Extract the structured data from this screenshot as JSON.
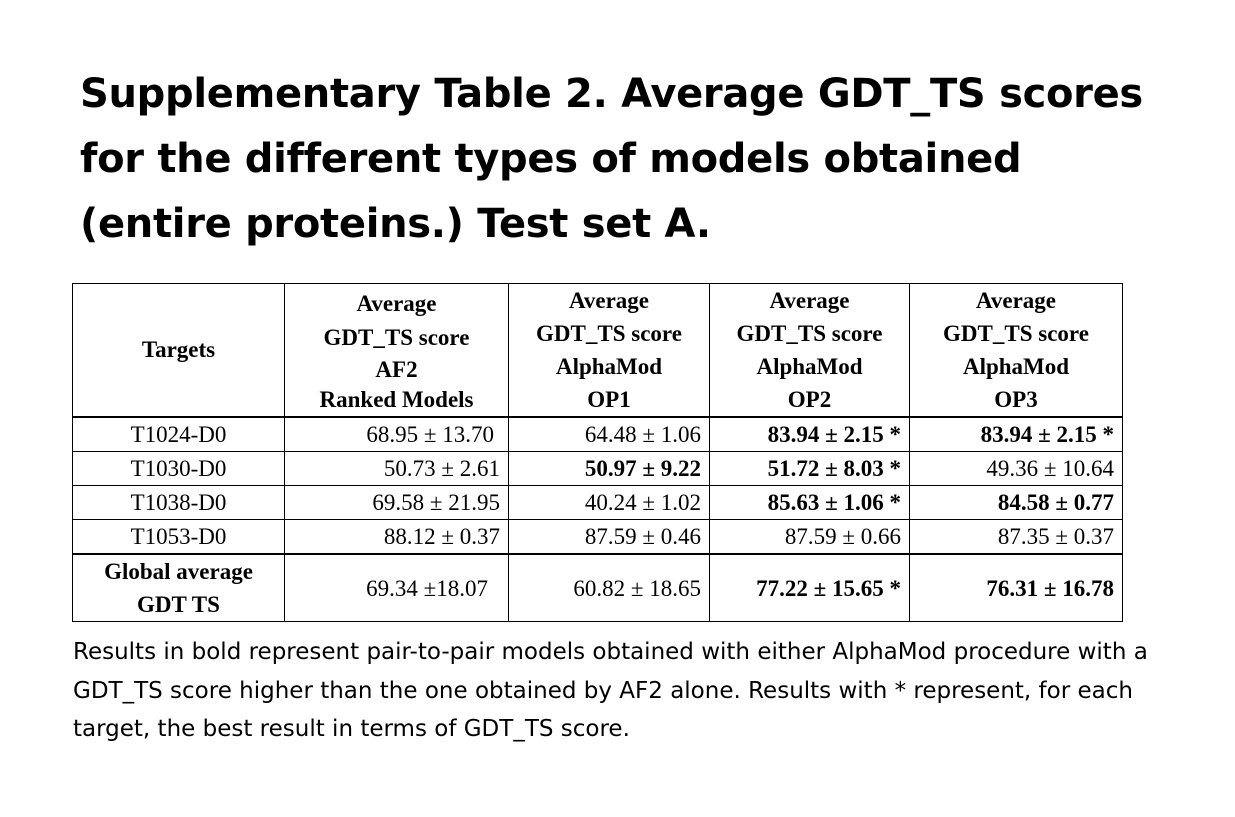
{
  "title": "Supplementary Table 2. Average GDT_TS scores for the different types of models obtained (entire proteins.) Test set A.",
  "table": {
    "headers": [
      [
        "Targets"
      ],
      [
        "Average",
        "GDT_TS score",
        "AF2",
        "Ranked Models"
      ],
      [
        "Average",
        "GDT_TS score",
        "AlphaMod",
        "OP1"
      ],
      [
        "Average",
        "GDT_TS score",
        "AlphaMod",
        "OP2"
      ],
      [
        "Average",
        "GDT_TS score",
        "AlphaMod",
        "OP3"
      ]
    ],
    "rows": [
      {
        "target": "T1024-D0",
        "af2": "68.95 ± 13.70",
        "op1": "64.48 ± 1.06",
        "op2": "83.94 ± 2.15 *",
        "op3": "83.94 ± 2.15 *"
      },
      {
        "target": "T1030-D0",
        "af2": "50.73 ± 2.61",
        "op1": "50.97 ± 9.22",
        "op2": "51.72 ± 8.03 *",
        "op3": "49.36 ± 10.64"
      },
      {
        "target": "T1038-D0",
        "af2": "69.58 ± 21.95",
        "op1": "40.24 ± 1.02",
        "op2": "85.63 ± 1.06 *",
        "op3": "84.58 ± 0.77"
      },
      {
        "target": "T1053-D0",
        "af2": "88.12 ± 0.37",
        "op1": "87.59 ± 0.46",
        "op2": "87.59 ± 0.66",
        "op3": "87.35 ± 0.37"
      }
    ],
    "global": {
      "label_line1": "Global average",
      "label_line2": "GDT TS",
      "af2": "69.34 ±18.07",
      "op1": "60.82 ± 18.65",
      "op2": "77.22 ± 15.65 *",
      "op3": "76.31 ± 16.78"
    }
  },
  "caption": "Results in bold represent pair-to-pair models obtained with either AlphaMod procedure with a GDT_TS score higher than the one obtained by AF2 alone. Results with * represent, for each target, the best result in terms of GDT_TS score."
}
